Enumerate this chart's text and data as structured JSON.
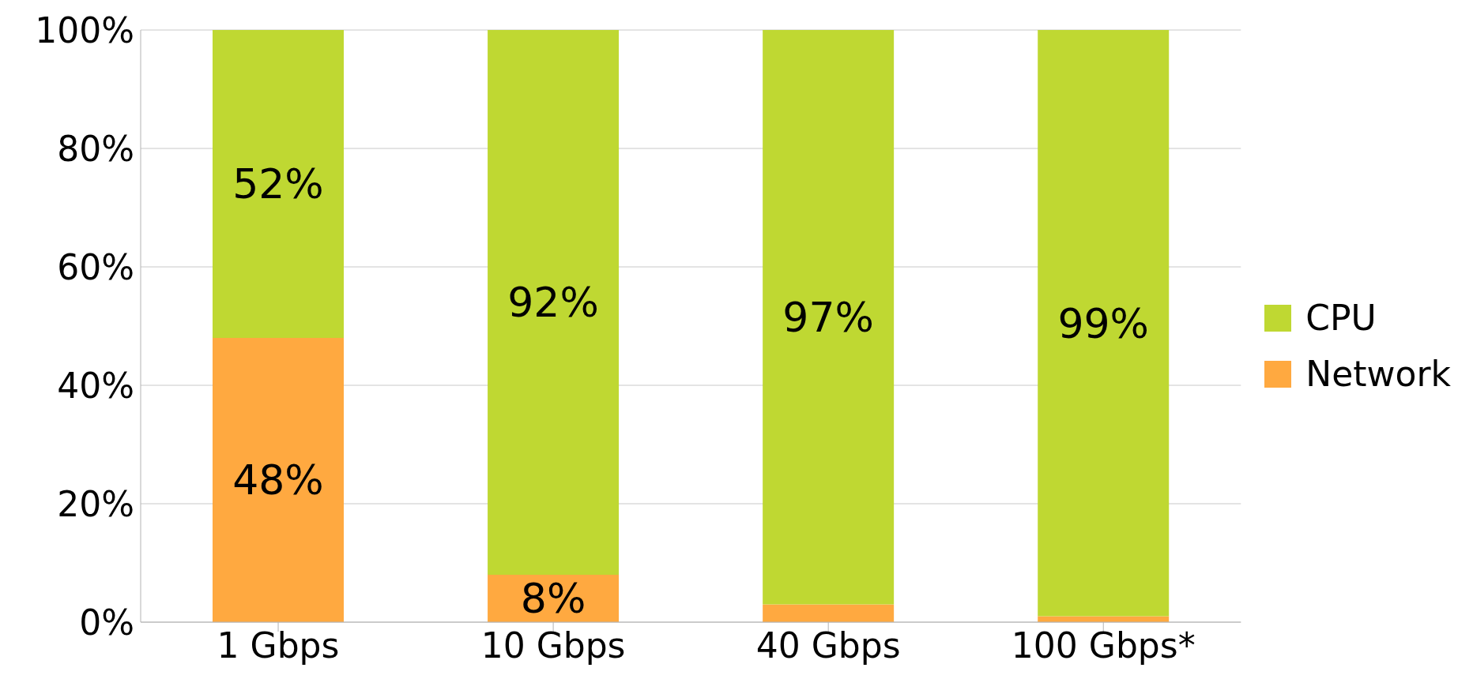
{
  "chart_data": {
    "type": "bar",
    "stacked": true,
    "categories": [
      "1 Gbps",
      "10 Gbps",
      "40 Gbps",
      "100 Gbps*"
    ],
    "series": [
      {
        "name": "Network",
        "color": "#ffa940",
        "values": [
          48,
          8,
          3,
          1
        ],
        "value_labels": [
          "48%",
          "8%",
          null,
          null
        ]
      },
      {
        "name": "CPU",
        "color": "#bfd832",
        "values": [
          52,
          92,
          97,
          99
        ],
        "value_labels": [
          "52%",
          "92%",
          "97%",
          "99%"
        ]
      }
    ],
    "ylim": [
      0,
      100
    ],
    "yticks": [
      {
        "value": 0,
        "label": "0%"
      },
      {
        "value": 20,
        "label": "20%"
      },
      {
        "value": 40,
        "label": "40%"
      },
      {
        "value": 60,
        "label": "60%"
      },
      {
        "value": 80,
        "label": "80%"
      },
      {
        "value": 100,
        "label": "100%"
      }
    ],
    "grid": "y",
    "legend": "right"
  }
}
